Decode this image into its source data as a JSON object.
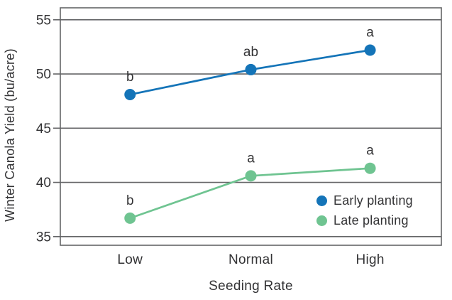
{
  "chart_data": {
    "type": "line",
    "categories": [
      "Low",
      "Normal",
      "High"
    ],
    "series": [
      {
        "name": "Early planting",
        "color": "#1474B8",
        "values": [
          48.1,
          50.4,
          52.2
        ],
        "point_labels": [
          "b",
          "ab",
          "a"
        ]
      },
      {
        "name": "Late planting",
        "color": "#6FC491",
        "values": [
          36.7,
          40.6,
          41.3
        ],
        "point_labels": [
          "b",
          "a",
          "a"
        ]
      }
    ],
    "title": "",
    "xlabel": "Seeding Rate",
    "ylabel": "Winter Canola Yield (bu/acre)",
    "ylim": [
      34.2,
      56.1
    ],
    "yticks": [
      35,
      40,
      45,
      50,
      55
    ],
    "grid": "horizontal",
    "legend_position": "inside-bottom-right"
  },
  "colors": {
    "grid": "#646567",
    "text": "#333335",
    "background": "#ffffff"
  }
}
